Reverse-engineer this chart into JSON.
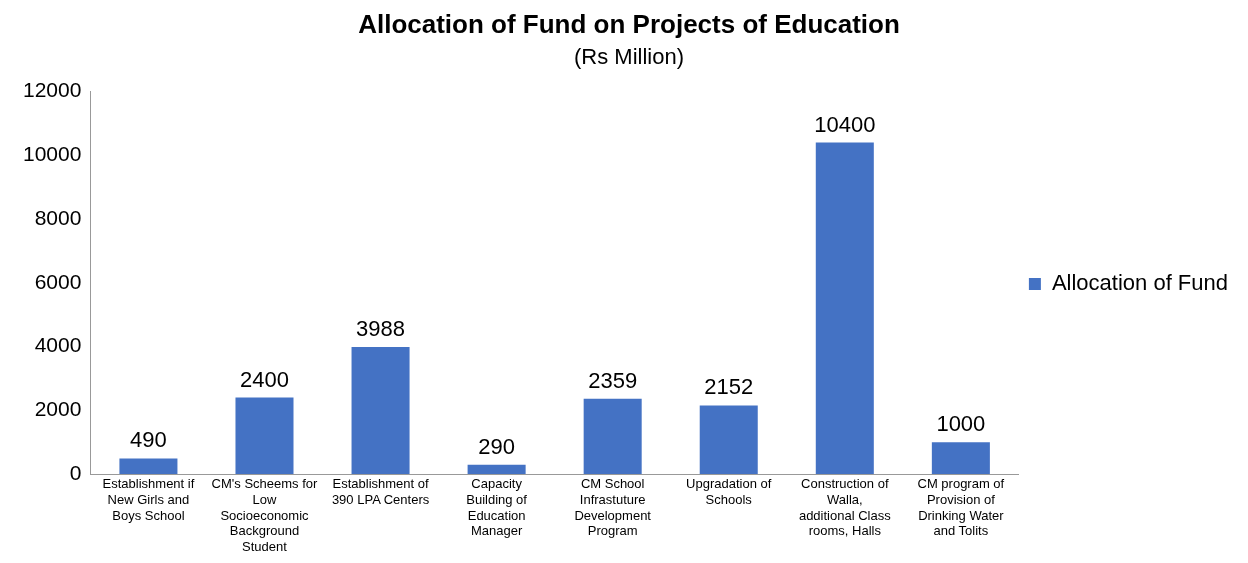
{
  "chart_data": {
    "type": "bar",
    "title": "Allocation of Fund on Projects of Education",
    "subtitle": "(Rs Million)",
    "categories": [
      "Establishment if New Girls and Boys School",
      "CM's Scheems for Low Socioeconomic Background Student",
      "Establishment of 390 LPA Centers",
      "Capacity Building of Education Manager",
      "CM School Infrastuture Development Program",
      "Upgradation of Schools",
      "Construction of Walla, additional Class rooms, Halls",
      "CM program of Provision of Drinking Water and Tolits"
    ],
    "series": [
      {
        "name": "Allocation of Fund",
        "color": "#4472c4",
        "values": [
          490,
          2400,
          3988,
          290,
          2359,
          2152,
          10400,
          1000
        ]
      }
    ],
    "ylim": [
      0,
      12000
    ],
    "yticks": [
      0,
      2000,
      4000,
      6000,
      8000,
      10000,
      12000
    ],
    "grid": false,
    "legend": "right",
    "data_labels": true
  }
}
